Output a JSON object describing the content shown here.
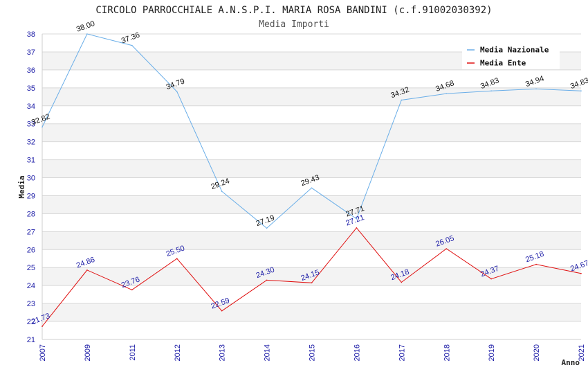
{
  "chart_data": {
    "type": "line",
    "title": "CIRCOLO PARROCCHIALE A.N.S.P.I. MARIA ROSA BANDINI (c.f.91002030392)",
    "subtitle": "Media Importi",
    "xlabel": "Anno",
    "ylabel": "Media",
    "ylim": [
      21,
      38
    ],
    "yticks": [
      21,
      22,
      23,
      24,
      25,
      26,
      27,
      28,
      29,
      30,
      31,
      32,
      33,
      34,
      35,
      36,
      37,
      38
    ],
    "categories": [
      "2007",
      "2009",
      "2011",
      "2012",
      "2013",
      "2014",
      "2015",
      "2016",
      "2017",
      "2018",
      "2019",
      "2020",
      "2021"
    ],
    "legend_position": "top-right",
    "series": [
      {
        "name": "Media Nazionale",
        "color": "#6aaee8",
        "label_color": "#111111",
        "values": [
          32.82,
          38.0,
          37.36,
          34.79,
          29.24,
          27.19,
          29.43,
          27.71,
          34.32,
          34.68,
          34.83,
          34.94,
          34.83
        ],
        "labels": [
          "32.82",
          "38.00",
          "37.36",
          "34.79",
          "29.24",
          "27.19",
          "29.43",
          "27.71",
          "34.32",
          "34.68",
          "34.83",
          "34.94",
          "34.83"
        ]
      },
      {
        "name": "Media Ente",
        "color": "#e01010",
        "label_color": "#1a1aa6",
        "values": [
          21.73,
          24.86,
          23.76,
          25.5,
          22.59,
          24.3,
          24.15,
          27.21,
          24.18,
          26.05,
          24.37,
          25.18,
          24.67
        ],
        "labels": [
          "21.73",
          "24.86",
          "23.76",
          "25.50",
          "22.59",
          "24.30",
          "24.15",
          "27.21",
          "24.18",
          "26.05",
          "24.37",
          "25.18",
          "24.67"
        ]
      }
    ]
  }
}
